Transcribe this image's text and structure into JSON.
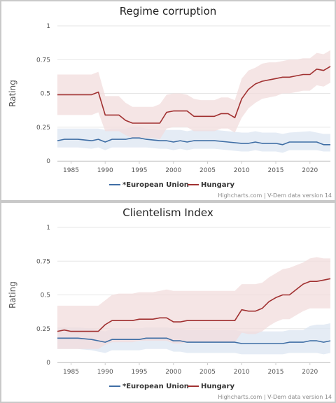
{
  "colors": {
    "eu": "#3f6ea5",
    "eu_band": "#dce6f2",
    "hungary": "#a13131",
    "hungary_band": "#f1dcdc",
    "grid": "#e6e6e6"
  },
  "legend": {
    "eu": "*European Union",
    "hungary": "Hungary"
  },
  "credits": "Highcharts.com | V-Dem data version 14",
  "chart_data": [
    {
      "type": "line",
      "title": "Regime corruption",
      "ylabel": "Rating",
      "xlabel": "",
      "xlim": [
        1983,
        2023
      ],
      "ylim": [
        0,
        1
      ],
      "x_ticks": [
        1985,
        1990,
        1995,
        2000,
        2005,
        2010,
        2015,
        2020
      ],
      "y_ticks": [
        "0",
        "0.25",
        "0.5",
        "0.75",
        "1"
      ],
      "grid": true,
      "legend_position": "bottom",
      "series": [
        {
          "name": "*European Union",
          "x": [
            1983,
            1984,
            1986,
            1988,
            1989,
            1990,
            1991,
            1993,
            1994,
            1995,
            1996,
            1998,
            1999,
            2000,
            2001,
            2002,
            2003,
            2004,
            2006,
            2008,
            2010,
            2011,
            2012,
            2013,
            2015,
            2016,
            2017,
            2020,
            2021,
            2022,
            2023
          ],
          "values": [
            0.15,
            0.16,
            0.16,
            0.15,
            0.16,
            0.14,
            0.16,
            0.16,
            0.17,
            0.17,
            0.16,
            0.15,
            0.15,
            0.14,
            0.15,
            0.14,
            0.15,
            0.15,
            0.15,
            0.14,
            0.13,
            0.13,
            0.14,
            0.13,
            0.13,
            0.12,
            0.14,
            0.14,
            0.14,
            0.12,
            0.12
          ],
          "band_upper": [
            0.24,
            0.24,
            0.24,
            0.24,
            0.24,
            0.23,
            0.24,
            0.24,
            0.25,
            0.25,
            0.24,
            0.23,
            0.23,
            0.23,
            0.23,
            0.22,
            0.23,
            0.23,
            0.23,
            0.22,
            0.21,
            0.21,
            0.22,
            0.21,
            0.21,
            0.2,
            0.21,
            0.22,
            0.21,
            0.2,
            0.2
          ],
          "band_lower": [
            0.1,
            0.1,
            0.1,
            0.09,
            0.1,
            0.08,
            0.1,
            0.1,
            0.1,
            0.1,
            0.1,
            0.09,
            0.09,
            0.08,
            0.09,
            0.08,
            0.09,
            0.09,
            0.09,
            0.08,
            0.07,
            0.07,
            0.08,
            0.07,
            0.07,
            0.06,
            0.08,
            0.08,
            0.08,
            0.07,
            0.07
          ]
        },
        {
          "name": "Hungary",
          "x": [
            1983,
            1988,
            1989,
            1990,
            1992,
            1993,
            1994,
            1995,
            1996,
            1997,
            1998,
            1999,
            2000,
            2001,
            2002,
            2003,
            2004,
            2005,
            2006,
            2007,
            2008,
            2009,
            2010,
            2011,
            2012,
            2013,
            2014,
            2015,
            2016,
            2017,
            2018,
            2019,
            2020,
            2021,
            2022,
            2023
          ],
          "values": [
            0.49,
            0.49,
            0.51,
            0.34,
            0.34,
            0.3,
            0.28,
            0.28,
            0.28,
            0.28,
            0.28,
            0.36,
            0.37,
            0.37,
            0.37,
            0.33,
            0.33,
            0.33,
            0.33,
            0.35,
            0.35,
            0.32,
            0.46,
            0.53,
            0.57,
            0.59,
            0.6,
            0.61,
            0.62,
            0.62,
            0.63,
            0.64,
            0.64,
            0.68,
            0.67,
            0.7
          ],
          "band_upper": [
            0.64,
            0.64,
            0.66,
            0.48,
            0.48,
            0.43,
            0.4,
            0.4,
            0.4,
            0.4,
            0.42,
            0.49,
            0.5,
            0.5,
            0.49,
            0.46,
            0.45,
            0.45,
            0.45,
            0.47,
            0.47,
            0.45,
            0.61,
            0.67,
            0.69,
            0.72,
            0.73,
            0.73,
            0.74,
            0.75,
            0.75,
            0.76,
            0.76,
            0.8,
            0.79,
            0.82
          ],
          "band_lower": [
            0.34,
            0.34,
            0.36,
            0.22,
            0.22,
            0.19,
            0.17,
            0.17,
            0.17,
            0.17,
            0.16,
            0.24,
            0.25,
            0.25,
            0.25,
            0.22,
            0.22,
            0.22,
            0.22,
            0.24,
            0.24,
            0.21,
            0.32,
            0.39,
            0.43,
            0.46,
            0.47,
            0.48,
            0.5,
            0.5,
            0.51,
            0.52,
            0.52,
            0.56,
            0.55,
            0.58
          ]
        }
      ]
    },
    {
      "type": "line",
      "title": "Clientelism Index",
      "ylabel": "Rating",
      "xlabel": "",
      "xlim": [
        1983,
        2023
      ],
      "ylim": [
        0,
        1
      ],
      "x_ticks": [
        1985,
        1990,
        1995,
        2000,
        2005,
        2010,
        2015,
        2020
      ],
      "y_ticks": [
        "0",
        "0.25",
        "0.5",
        "0.75",
        "1"
      ],
      "grid": true,
      "legend_position": "bottom",
      "series": [
        {
          "name": "*European Union",
          "x": [
            1983,
            1986,
            1988,
            1989,
            1990,
            1991,
            1993,
            1994,
            1995,
            1996,
            1998,
            1999,
            2000,
            2001,
            2002,
            2004,
            2006,
            2008,
            2009,
            2010,
            2012,
            2014,
            2016,
            2017,
            2019,
            2020,
            2021,
            2022,
            2023
          ],
          "values": [
            0.18,
            0.18,
            0.17,
            0.16,
            0.15,
            0.17,
            0.17,
            0.17,
            0.17,
            0.18,
            0.18,
            0.18,
            0.16,
            0.16,
            0.15,
            0.15,
            0.15,
            0.15,
            0.15,
            0.14,
            0.14,
            0.14,
            0.14,
            0.15,
            0.15,
            0.16,
            0.16,
            0.15,
            0.16
          ],
          "band_upper": [
            0.26,
            0.26,
            0.25,
            0.24,
            0.23,
            0.25,
            0.25,
            0.25,
            0.25,
            0.26,
            0.26,
            0.26,
            0.25,
            0.25,
            0.24,
            0.24,
            0.24,
            0.24,
            0.24,
            0.23,
            0.23,
            0.23,
            0.23,
            0.24,
            0.24,
            0.27,
            0.28,
            0.28,
            0.29
          ],
          "band_lower": [
            0.1,
            0.1,
            0.09,
            0.08,
            0.07,
            0.09,
            0.09,
            0.09,
            0.09,
            0.1,
            0.1,
            0.1,
            0.08,
            0.08,
            0.07,
            0.07,
            0.07,
            0.07,
            0.07,
            0.06,
            0.06,
            0.06,
            0.06,
            0.07,
            0.07,
            0.07,
            0.07,
            0.06,
            0.07
          ]
        },
        {
          "name": "Hungary",
          "x": [
            1983,
            1984,
            1985,
            1989,
            1990,
            1991,
            1992,
            1993,
            1994,
            1995,
            1996,
            1997,
            1998,
            1999,
            2000,
            2001,
            2002,
            2003,
            2004,
            2005,
            2006,
            2007,
            2008,
            2009,
            2010,
            2011,
            2012,
            2013,
            2014,
            2015,
            2016,
            2017,
            2018,
            2019,
            2020,
            2021,
            2022,
            2023
          ],
          "values": [
            0.23,
            0.24,
            0.23,
            0.23,
            0.28,
            0.31,
            0.31,
            0.31,
            0.31,
            0.32,
            0.32,
            0.32,
            0.33,
            0.33,
            0.3,
            0.3,
            0.31,
            0.31,
            0.31,
            0.31,
            0.31,
            0.31,
            0.31,
            0.31,
            0.39,
            0.38,
            0.38,
            0.4,
            0.45,
            0.48,
            0.5,
            0.5,
            0.54,
            0.58,
            0.6,
            0.6,
            0.61,
            0.62
          ],
          "band_upper": [
            0.42,
            0.42,
            0.42,
            0.42,
            0.46,
            0.5,
            0.51,
            0.51,
            0.51,
            0.52,
            0.52,
            0.52,
            0.53,
            0.54,
            0.53,
            0.53,
            0.53,
            0.53,
            0.53,
            0.53,
            0.53,
            0.53,
            0.53,
            0.53,
            0.58,
            0.58,
            0.58,
            0.59,
            0.63,
            0.66,
            0.69,
            0.7,
            0.72,
            0.74,
            0.77,
            0.78,
            0.77,
            0.77
          ],
          "band_lower": [
            0.1,
            0.1,
            0.1,
            0.1,
            0.13,
            0.15,
            0.15,
            0.15,
            0.15,
            0.16,
            0.16,
            0.16,
            0.16,
            0.16,
            0.14,
            0.14,
            0.15,
            0.15,
            0.15,
            0.15,
            0.15,
            0.15,
            0.15,
            0.15,
            0.22,
            0.21,
            0.21,
            0.23,
            0.27,
            0.3,
            0.32,
            0.32,
            0.35,
            0.38,
            0.4,
            0.4,
            0.4,
            0.4
          ]
        }
      ]
    }
  ]
}
